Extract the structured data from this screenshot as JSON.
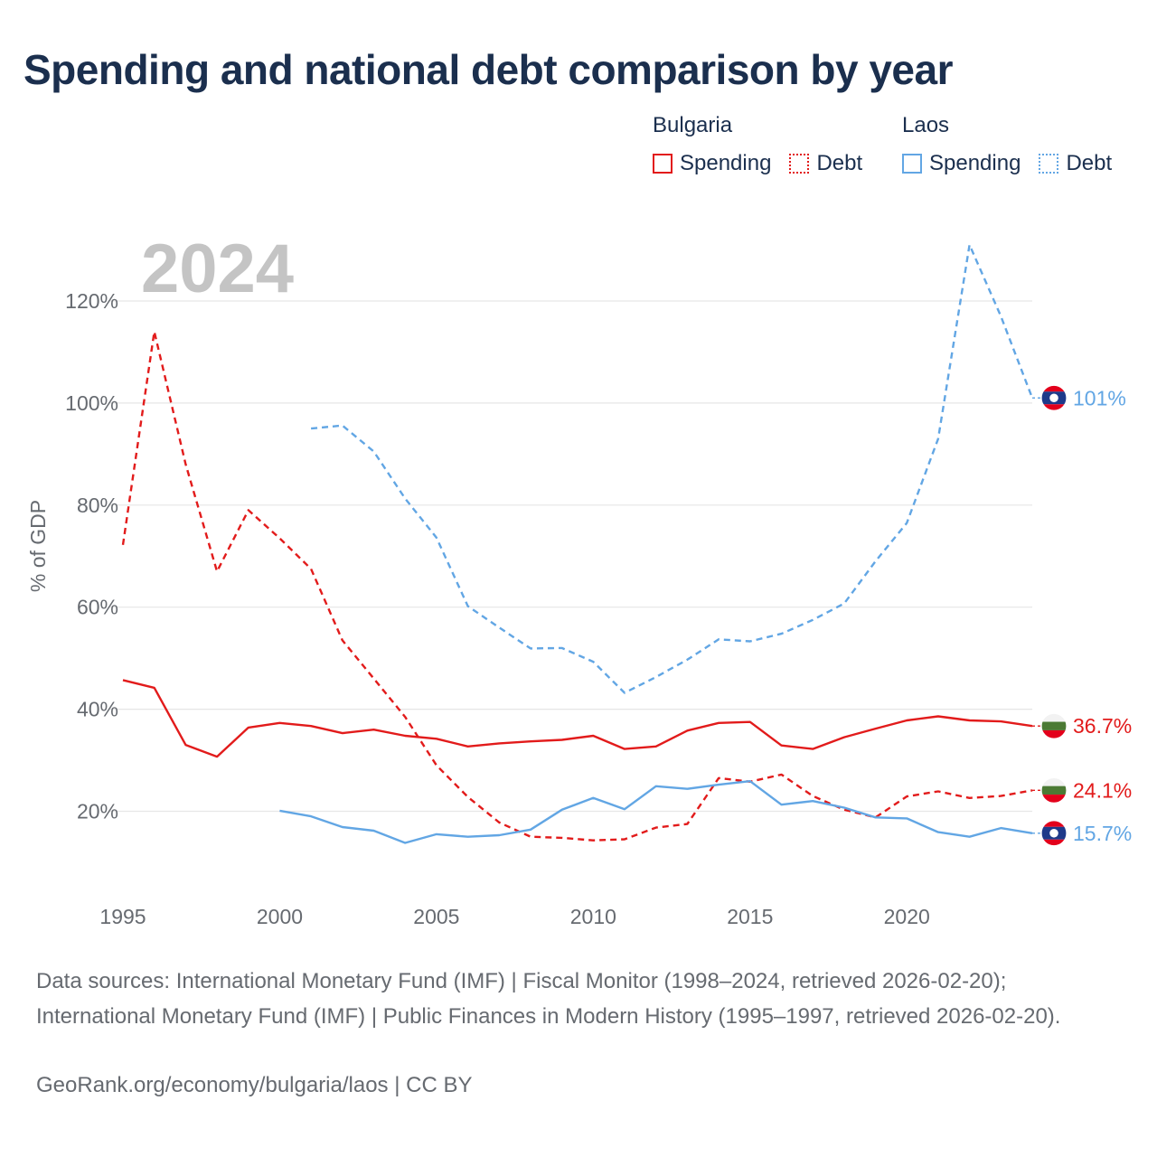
{
  "title": "Spending and national debt comparison by year",
  "legend": {
    "bulgaria": {
      "name": "Bulgaria",
      "spending": "Spending",
      "debt": "Debt",
      "color": "#e21b1b"
    },
    "laos": {
      "name": "Laos",
      "spending": "Spending",
      "debt": "Debt",
      "color": "#62a6e4"
    }
  },
  "chart_data": {
    "type": "line",
    "year_watermark": "2024",
    "ylabel": "% of GDP",
    "xlabel": "",
    "xlim": [
      1995,
      2024
    ],
    "ylim": [
      5,
      132
    ],
    "x_ticks": [
      1995,
      2000,
      2005,
      2010,
      2015,
      2020
    ],
    "y_ticks": [
      20,
      40,
      60,
      80,
      100,
      120
    ],
    "y_tick_labels": [
      "20%",
      "40%",
      "60%",
      "80%",
      "100%",
      "120%"
    ],
    "grid": true,
    "series": [
      {
        "name": "Bulgaria Debt",
        "country": "bulgaria",
        "style": "dashed",
        "color": "#e21b1b",
        "end_label": "24.1%",
        "x": [
          1995,
          1996,
          1997,
          1998,
          1999,
          2000,
          2001,
          2002,
          2003,
          2004,
          2005,
          2006,
          2007,
          2008,
          2009,
          2010,
          2011,
          2012,
          2013,
          2014,
          2015,
          2016,
          2017,
          2018,
          2019,
          2020,
          2021,
          2022,
          2023,
          2024
        ],
        "values": [
          72.2,
          114.0,
          88.0,
          67.0,
          79.0,
          73.5,
          67.5,
          53.5,
          46.0,
          38.5,
          29.0,
          22.8,
          17.8,
          15.0,
          14.8,
          14.3,
          14.5,
          16.8,
          17.5,
          26.5,
          25.8,
          27.2,
          23.0,
          20.3,
          18.8,
          22.9,
          23.9,
          22.6,
          23.0,
          24.1
        ]
      },
      {
        "name": "Bulgaria Spending",
        "country": "bulgaria",
        "style": "solid",
        "color": "#e21b1b",
        "end_label": "36.7%",
        "x": [
          1995,
          1996,
          1997,
          1998,
          1999,
          2000,
          2001,
          2002,
          2003,
          2004,
          2005,
          2006,
          2007,
          2008,
          2009,
          2010,
          2011,
          2012,
          2013,
          2014,
          2015,
          2016,
          2017,
          2018,
          2019,
          2020,
          2021,
          2022,
          2023,
          2024
        ],
        "values": [
          45.7,
          44.2,
          33.0,
          30.7,
          36.4,
          37.3,
          36.7,
          35.3,
          36.0,
          34.8,
          34.2,
          32.7,
          33.3,
          33.7,
          34.0,
          34.8,
          32.2,
          32.7,
          35.8,
          37.3,
          37.5,
          32.9,
          32.2,
          34.5,
          36.2,
          37.8,
          38.6,
          37.8,
          37.6,
          36.7
        ]
      },
      {
        "name": "Laos Debt",
        "country": "laos",
        "style": "dashed",
        "color": "#62a6e4",
        "end_label": "101%",
        "x": [
          2001,
          2002,
          2003,
          2004,
          2005,
          2006,
          2007,
          2008,
          2009,
          2010,
          2011,
          2012,
          2013,
          2014,
          2015,
          2016,
          2017,
          2018,
          2019,
          2020,
          2021,
          2022,
          2023,
          2024
        ],
        "values": [
          95.0,
          95.6,
          90.5,
          81.3,
          73.6,
          60.2,
          56.0,
          51.9,
          52.0,
          49.3,
          43.2,
          46.3,
          49.7,
          53.7,
          53.3,
          54.8,
          57.5,
          60.7,
          69.0,
          76.5,
          93.0,
          131.0,
          117.0,
          101.0
        ]
      },
      {
        "name": "Laos Spending",
        "country": "laos",
        "style": "solid",
        "color": "#62a6e4",
        "end_label": "15.7%",
        "x": [
          2000,
          2001,
          2002,
          2003,
          2004,
          2005,
          2006,
          2007,
          2008,
          2009,
          2010,
          2011,
          2012,
          2013,
          2014,
          2015,
          2016,
          2017,
          2018,
          2019,
          2020,
          2021,
          2022,
          2023,
          2024
        ],
        "values": [
          20.1,
          19.0,
          16.9,
          16.2,
          13.8,
          15.5,
          15.0,
          15.3,
          16.4,
          20.3,
          22.6,
          20.4,
          24.9,
          24.4,
          25.2,
          25.9,
          21.3,
          22.0,
          20.7,
          18.8,
          18.6,
          15.9,
          15.0,
          16.7,
          15.7
        ]
      }
    ]
  },
  "source": {
    "line1": "Data sources: International Monetary Fund (IMF) | Fiscal Monitor (1998–2024, retrieved 2026-02-20);",
    "line2": "International Monetary Fund (IMF) | Public Finances in Modern History (1995–1997, retrieved 2026-02-20).",
    "credit": "GeoRank.org/economy/bulgaria/laos | CC BY"
  }
}
